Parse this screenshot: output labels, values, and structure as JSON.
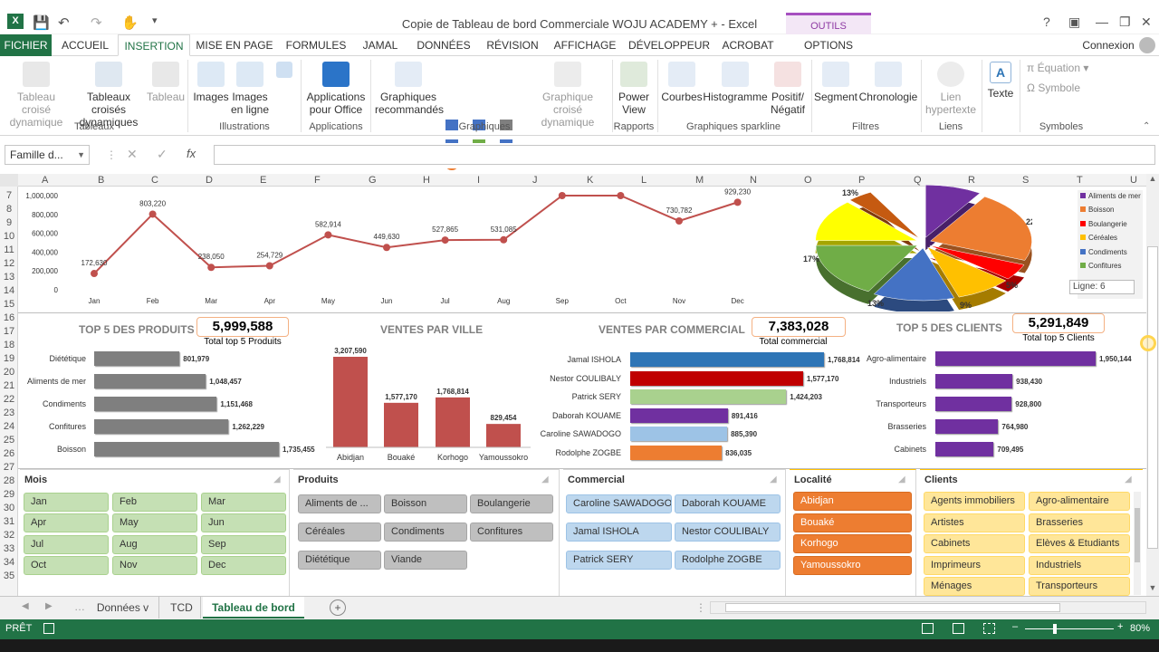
{
  "window": {
    "title": "Copie de Tableau de bord Commerciale WOJU ACADEMY + - Excel",
    "contextual_group": "OUTILS SEGMENT",
    "signin": "Connexion"
  },
  "ribbon_tabs": [
    "FICHIER",
    "ACCUEIL",
    "INSERTION",
    "MISE EN PAGE",
    "FORMULES",
    "JAMAL",
    "DONNÉES",
    "RÉVISION",
    "AFFICHAGE",
    "DÉVELOPPEUR",
    "ACROBAT",
    "OPTIONS"
  ],
  "ribbon": {
    "buttons": [
      "Tableau croisé dynamique",
      "Tableaux croisés dynamiques",
      "Tableau",
      "Images",
      "Images en ligne",
      "Applications pour Office",
      "Graphiques recommandés",
      "Graphique croisé dynamique",
      "Power View",
      "Courbes",
      "Histogramme",
      "Positif/ Négatif",
      "Segment",
      "Chronologie",
      "Lien hypertexte",
      "Texte",
      "Équation",
      "Symbole"
    ],
    "groups": [
      "Tableaux",
      "Illustrations",
      "Applications",
      "Graphiques",
      "Rapports",
      "Graphiques sparkline",
      "Filtres",
      "Liens",
      "Symboles"
    ]
  },
  "formula_bar": {
    "name_box": "Famille d...",
    "fx": "fx"
  },
  "columns": [
    "A",
    "B",
    "C",
    "D",
    "E",
    "F",
    "G",
    "H",
    "I",
    "J",
    "K",
    "L",
    "M",
    "N",
    "O",
    "P",
    "Q",
    "R",
    "S",
    "T",
    "U"
  ],
  "rows": [
    "7",
    "8",
    "9",
    "10",
    "11",
    "12",
    "13",
    "14",
    "15",
    "16",
    "17",
    "18",
    "19",
    "20",
    "21",
    "22",
    "23",
    "24",
    "25",
    "26",
    "27",
    "28",
    "29",
    "30",
    "31",
    "32",
    "33",
    "34",
    "35"
  ],
  "chart_data": [
    {
      "type": "line",
      "x": [
        "Jan",
        "Feb",
        "Mar",
        "Apr",
        "May",
        "Jun",
        "Jul",
        "Aug",
        "Sep",
        "Oct",
        "Nov",
        "Dec"
      ],
      "values": [
        172630,
        803220,
        238050,
        254729,
        582914,
        449630,
        527865,
        531085,
        1000000,
        1000000,
        730782,
        929230
      ],
      "value_labels": [
        "172,630",
        "803,220",
        "238,050",
        "254,729",
        "582,914",
        "449,630",
        "527,865",
        "531,085",
        "",
        "",
        "730,782",
        "929,230"
      ],
      "y_ticks": [
        "1,000,000",
        "800,000",
        "600,000",
        "400,000",
        "200,000",
        "0"
      ],
      "ylim": [
        0,
        1000000
      ],
      "color": "#c0504d"
    },
    {
      "type": "pie",
      "slices": [
        {
          "name": "Aliments de mer",
          "pct": "",
          "color": "#7030a0"
        },
        {
          "name": "Boisson",
          "pct": "22%",
          "color": "#ed7d31"
        },
        {
          "name": "Boulangerie",
          "pct": "5%",
          "color": "#ff0000"
        },
        {
          "name": "Céréales",
          "pct": "9%",
          "color": "#ffc000"
        },
        {
          "name": "Condiments",
          "pct": "13%",
          "color": "#4472c4"
        },
        {
          "name": "Confitures",
          "pct": "17%",
          "color": "#70ad47"
        },
        {
          "name": "",
          "pct": "13%",
          "color": "#ffff00"
        },
        {
          "name": "Viande",
          "pct": "",
          "color": "#c55a11"
        }
      ],
      "tooltip": "Ligne: 6"
    },
    {
      "type": "bar",
      "title": "TOP 5 DES PRODUITS",
      "kpi": "5,999,588",
      "kpi_label": "Total top 5 Produits",
      "categories": [
        "Diététique",
        "Aliments de mer",
        "Condiments",
        "Confitures",
        "Boisson"
      ],
      "values": [
        801979,
        1048457,
        1151468,
        1262229,
        1735455
      ],
      "value_labels": [
        "801,979",
        "1,048,457",
        "1,151,468",
        "1,262,229",
        "1,735,455"
      ],
      "color": "#7f7f7f"
    },
    {
      "type": "bar",
      "title": "VENTES PAR VILLE",
      "categories": [
        "Abidjan",
        "Bouaké",
        "Korhogo",
        "Yamoussokro"
      ],
      "values": [
        3207590,
        1577170,
        1768814,
        829454
      ],
      "value_labels": [
        "3,207,590",
        "1,577,170",
        "1,768,814",
        "829,454"
      ],
      "color": "#c0504d"
    },
    {
      "type": "bar",
      "title": "VENTES PAR COMMERCIAL",
      "kpi": "7,383,028",
      "kpi_label": "Total commercial",
      "categories": [
        "Jamal ISHOLA",
        "Nestor COULIBALY",
        "Patrick SERY",
        "Daborah KOUAME",
        "Caroline SAWADOGO",
        "Rodolphe ZOGBE"
      ],
      "values": [
        1768814,
        1577170,
        1424203,
        891416,
        885390,
        836035
      ],
      "value_labels": [
        "1,768,814",
        "1,577,170",
        "1,424,203",
        "891,416",
        "885,390",
        "836,035"
      ],
      "colors": [
        "#2e75b6",
        "#c00000",
        "#a9d18e",
        "#7030a0",
        "#9dc3e6",
        "#ed7d31"
      ]
    },
    {
      "type": "bar",
      "title": "TOP 5 DES CLIENTS",
      "kpi": "5,291,849",
      "kpi_label": "Total top 5 Clients",
      "categories": [
        "Agro-alimentaire",
        "Industriels",
        "Transporteurs",
        "Brasseries",
        "Cabinets"
      ],
      "values": [
        1950144,
        938430,
        928800,
        764980,
        709495
      ],
      "value_labels": [
        "1,950,144",
        "938,430",
        "928,800",
        "764,980",
        "709,495"
      ],
      "color": "#7030a0"
    }
  ],
  "slicers": {
    "mois": {
      "title": "Mois",
      "items": [
        "Jan",
        "Feb",
        "Mar",
        "Apr",
        "May",
        "Jun",
        "Jul",
        "Aug",
        "Sep",
        "Oct",
        "Nov",
        "Dec"
      ]
    },
    "produits": {
      "title": "Produits",
      "items": [
        "Aliments de ...",
        "Boisson",
        "Boulangerie",
        "Céréales",
        "Condiments",
        "Confitures",
        "Diététique",
        "Viande"
      ]
    },
    "commercial": {
      "title": "Commercial",
      "items": [
        "Caroline SAWADOGO",
        "Daborah KOUAME",
        "Jamal ISHOLA",
        "Nestor COULIBALY",
        "Patrick SERY",
        "Rodolphe ZOGBE"
      ]
    },
    "localite": {
      "title": "Localité",
      "items": [
        "Abidjan",
        "Bouaké",
        "Korhogo",
        "Yamoussokro"
      ]
    },
    "clients": {
      "title": "Clients",
      "items": [
        "Agents immobiliers",
        "Agro-alimentaire",
        "Artistes",
        "Brasseries",
        "Cabinets",
        "Elèves & Etudiants",
        "Imprimeurs",
        "Industriels",
        "Ménages",
        "Transporteurs"
      ]
    }
  },
  "sheets": [
    "Données v",
    "TCD",
    "Tableau de bord"
  ],
  "status": {
    "mode": "PRÊT",
    "zoom": "80%"
  }
}
